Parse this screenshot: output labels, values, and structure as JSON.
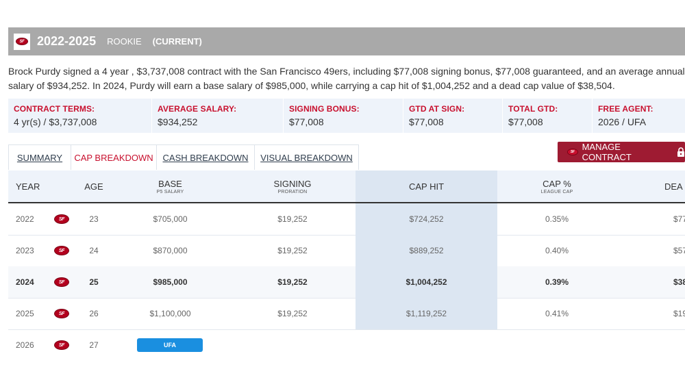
{
  "header": {
    "years": "2022-2025",
    "kind": "ROOKIE",
    "status": "(CURRENT)"
  },
  "description": "Brock Purdy signed a 4 year , $3,737,008 contract with the San Francisco 49ers, including $77,008 signing bonus, $77,008 guaranteed, and an average annual salary of $934,252. In 2024, Purdy will earn a base salary of $985,000, while carrying a cap hit of $1,004,252 and a dead cap value of $38,504.",
  "terms": [
    {
      "label": "CONTRACT TERMS:",
      "value": "4 yr(s) / $3,737,008"
    },
    {
      "label": "AVERAGE SALARY:",
      "value": "$934,252"
    },
    {
      "label": "SIGNING BONUS:",
      "value": "$77,008"
    },
    {
      "label": "GTD AT SIGN:",
      "value": "$77,008"
    },
    {
      "label": "TOTAL GTD:",
      "value": "$77,008"
    },
    {
      "label": "FREE AGENT:",
      "value": "2026 / UFA"
    }
  ],
  "tabs": [
    "SUMMARY",
    "CAP BREAKDOWN",
    "CASH BREAKDOWN",
    "VISUAL BREAKDOWN"
  ],
  "manage_label": "MANAGE CONTRACT",
  "team_logo_text": "SF",
  "columns": {
    "year": "YEAR",
    "age": "AGE",
    "base": "BASE",
    "base_sub": "P5 SALARY",
    "signing": "SIGNING",
    "signing_sub": "PRORATION",
    "caphit": "CAP HIT",
    "cappct": "CAP %",
    "cappct_sub": "LEAGUE CAP",
    "dead": "DEA"
  },
  "rows": [
    {
      "year": "2022",
      "age": "23",
      "base": "$705,000",
      "signing": "$19,252",
      "caphit": "$724,252",
      "cappct": "0.35%",
      "dead": "$77"
    },
    {
      "year": "2023",
      "age": "24",
      "base": "$870,000",
      "signing": "$19,252",
      "caphit": "$889,252",
      "cappct": "0.40%",
      "dead": "$57"
    },
    {
      "year": "2024",
      "age": "25",
      "base": "$985,000",
      "signing": "$19,252",
      "caphit": "$1,004,252",
      "cappct": "0.39%",
      "dead": "$38"
    },
    {
      "year": "2025",
      "age": "26",
      "base": "$1,100,000",
      "signing": "$19,252",
      "caphit": "$1,119,252",
      "cappct": "0.41%",
      "dead": "$19"
    }
  ],
  "last_row": {
    "year": "2026",
    "age": "27",
    "badge": "UFA"
  },
  "colors": {
    "accent": "#c8102e",
    "header": "#a9a9a9",
    "manage": "#9e1b32",
    "badge": "#1a8fe0"
  }
}
